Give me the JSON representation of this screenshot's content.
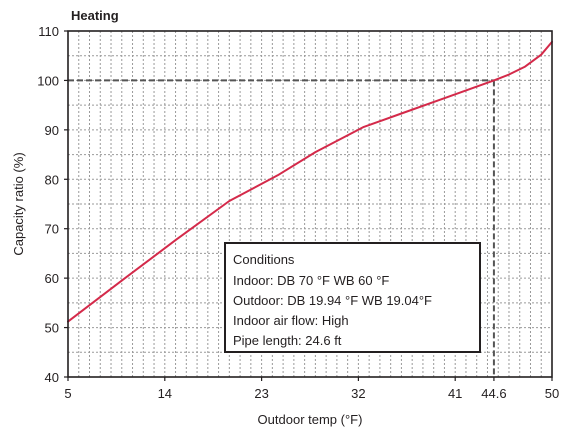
{
  "chart_data": {
    "type": "line",
    "title": "Heating",
    "xlabel": "Outdoor temp (°F)",
    "ylabel": "Capacity ratio (%)",
    "xlim": [
      5,
      50
    ],
    "ylim": [
      40,
      110
    ],
    "x_ticks": [
      "5",
      "14",
      "23",
      "32",
      "41",
      "44.6",
      "50"
    ],
    "y_ticks": [
      "40",
      "50",
      "60",
      "70",
      "80",
      "90",
      "100",
      "110"
    ],
    "grid": true,
    "colors": {
      "curve": "#d42a4a"
    },
    "series": [
      {
        "x": [
          5,
          10,
          15,
          20,
          24.5,
          28,
          32.5,
          36,
          40,
          44.6,
          46,
          47.5,
          49,
          50
        ],
        "values": [
          51.2,
          59.5,
          67.7,
          75.6,
          80.8,
          85.5,
          90.6,
          93.3,
          96.4,
          100,
          101.2,
          102.8,
          105.2,
          107.8
        ]
      }
    ],
    "reference_point": {
      "x": 44.6,
      "y": 100
    },
    "annotations": [
      "Conditions",
      "Indoor: DB 70 °F    WB 60 °F",
      "Outdoor: DB 19.94 °F    WB 19.04°F",
      "Indoor air flow: High",
      "Pipe length: 24.6 ft"
    ]
  }
}
